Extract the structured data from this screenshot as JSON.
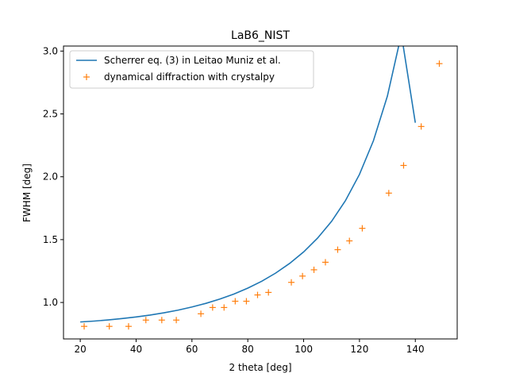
{
  "chart_data": {
    "type": "line",
    "title": "LaB6_NIST",
    "xlabel": "2 theta [deg]",
    "ylabel": "FWHM [deg]",
    "xlim": [
      14,
      155
    ],
    "ylim": [
      0.71,
      3.04
    ],
    "xticks": [
      20,
      40,
      60,
      80,
      100,
      120,
      140
    ],
    "yticks": [
      1.0,
      1.5,
      2.0,
      2.5,
      3.0
    ],
    "xtick_labels": [
      "20",
      "40",
      "60",
      "80",
      "100",
      "120",
      "140"
    ],
    "ytick_labels": [
      "1.0",
      "1.5",
      "2.0",
      "2.5",
      "3.0"
    ],
    "legend_position": "top-left",
    "grid": false,
    "series": [
      {
        "name": "Scherrer eq. (3) in Leitao Muniz et al.",
        "kind": "line",
        "color": "#1f77b4",
        "x": [
          20,
          25,
          30,
          35,
          40,
          45,
          50,
          55,
          60,
          65,
          70,
          75,
          80,
          85,
          90,
          95,
          100,
          105,
          110,
          115,
          120,
          125,
          130,
          135,
          140
        ],
        "y": [
          0.845,
          0.852,
          0.861,
          0.872,
          0.885,
          0.9,
          0.918,
          0.939,
          0.964,
          0.993,
          1.027,
          1.067,
          1.114,
          1.169,
          1.234,
          1.311,
          1.402,
          1.512,
          1.645,
          1.811,
          2.019,
          2.287,
          2.642,
          3.134,
          2.43
        ]
      },
      {
        "name": "dynamical diffraction with crystalpy",
        "kind": "scatter",
        "marker": "+",
        "color": "#ff7f0e",
        "x": [
          21.4,
          30.4,
          37.3,
          43.5,
          49.2,
          54.4,
          63.2,
          67.4,
          71.5,
          75.5,
          79.5,
          83.5,
          87.4,
          95.6,
          99.6,
          103.7,
          107.8,
          112.2,
          116.4,
          121,
          130.5,
          135.8,
          142.1,
          148.6
        ],
        "y": [
          0.81,
          0.81,
          0.81,
          0.86,
          0.86,
          0.86,
          0.91,
          0.96,
          0.96,
          1.01,
          1.01,
          1.06,
          1.08,
          1.16,
          1.21,
          1.26,
          1.32,
          1.42,
          1.49,
          1.59,
          1.87,
          2.09,
          2.4,
          2.9
        ]
      }
    ]
  }
}
